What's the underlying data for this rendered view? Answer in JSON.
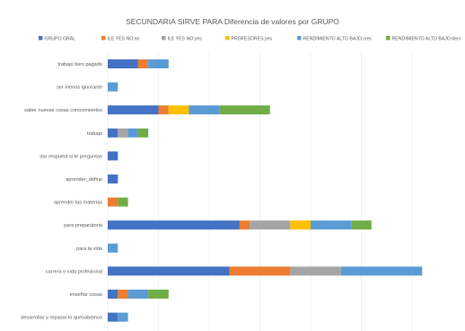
{
  "chart_data": {
    "type": "bar",
    "orientation": "horizontal",
    "stacked": true,
    "title": "SECUNDARIA SIRVE PARA Diferencia de valores por GRUPO",
    "legend_position": "top",
    "grid": true,
    "categories": [
      "trabajo bien pagado",
      "ser menos ignorante",
      "saber nuevas cosas conocimientos",
      "trabajo",
      "dar respuest si te preguntan",
      "aprender_define",
      "aprender las materias",
      "para preparatoria",
      "para la vida",
      "carrera o vida profesional",
      "enseñar cosas",
      "desarrollar y repasar lo quesabemos"
    ],
    "series": [
      {
        "name": "GRUPO GRAL",
        "color": "#4472c4",
        "values": [
          3,
          0,
          5,
          1,
          1,
          1,
          0,
          13,
          0,
          12,
          1,
          1
        ]
      },
      {
        "name": "ILE YES NO:no",
        "color": "#ed7d31",
        "values": [
          1,
          0,
          1,
          0,
          0,
          0,
          1,
          1,
          0,
          6,
          1,
          0
        ]
      },
      {
        "name": "ILE YES NO:yes",
        "color": "#a5a5a5",
        "values": [
          0,
          0,
          0,
          1,
          0,
          0,
          0,
          4,
          0,
          5,
          0,
          0
        ]
      },
      {
        "name": "PROFESORES:yes",
        "color": "#ffc000",
        "values": [
          0,
          0,
          2,
          0,
          0,
          0,
          0,
          2,
          0,
          0,
          0,
          0
        ]
      },
      {
        "name": "RENDIMIENTO ALTO BAJO:crec",
        "color": "#5b9bd5",
        "values": [
          2,
          1,
          3,
          1,
          0,
          0,
          0,
          4,
          1,
          8,
          2,
          1
        ]
      },
      {
        "name": "RENDIMIENTO ALTO BAJO:decr",
        "color": "#70ad47",
        "values": [
          0,
          0,
          5,
          1,
          0,
          0,
          1,
          2,
          0,
          0,
          2,
          0
        ]
      }
    ]
  }
}
